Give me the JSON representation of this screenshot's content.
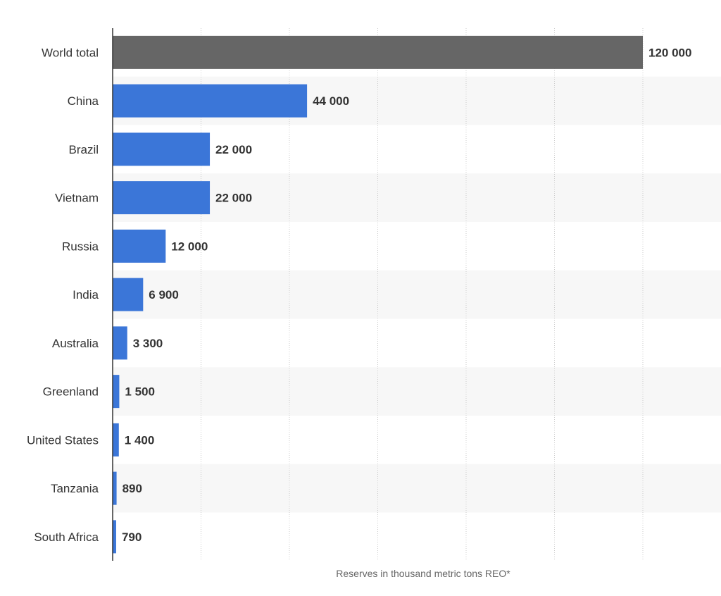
{
  "chart_data": {
    "type": "bar",
    "orientation": "horizontal",
    "categories": [
      "World total",
      "China",
      "Brazil",
      "Vietnam",
      "Russia",
      "India",
      "Australia",
      "Greenland",
      "United States",
      "Tanzania",
      "South Africa"
    ],
    "values": [
      120000,
      44000,
      22000,
      22000,
      12000,
      6900,
      3300,
      1500,
      1400,
      890,
      790
    ],
    "value_labels": [
      "120 000",
      "44 000",
      "22 000",
      "22 000",
      "12 000",
      "6 900",
      "3 300",
      "1 500",
      "1 400",
      "890",
      "790"
    ],
    "xlabel": "Reserves in thousand metric tons REO*",
    "ylabel": "",
    "xlim": [
      0,
      120000
    ],
    "grid": true,
    "colors": {
      "highlight": "#666666",
      "bar": "#3b76d8",
      "band": "#f7f7f7",
      "grid": "#cccccc",
      "axis": "#333333"
    },
    "highlight_index": 0
  }
}
